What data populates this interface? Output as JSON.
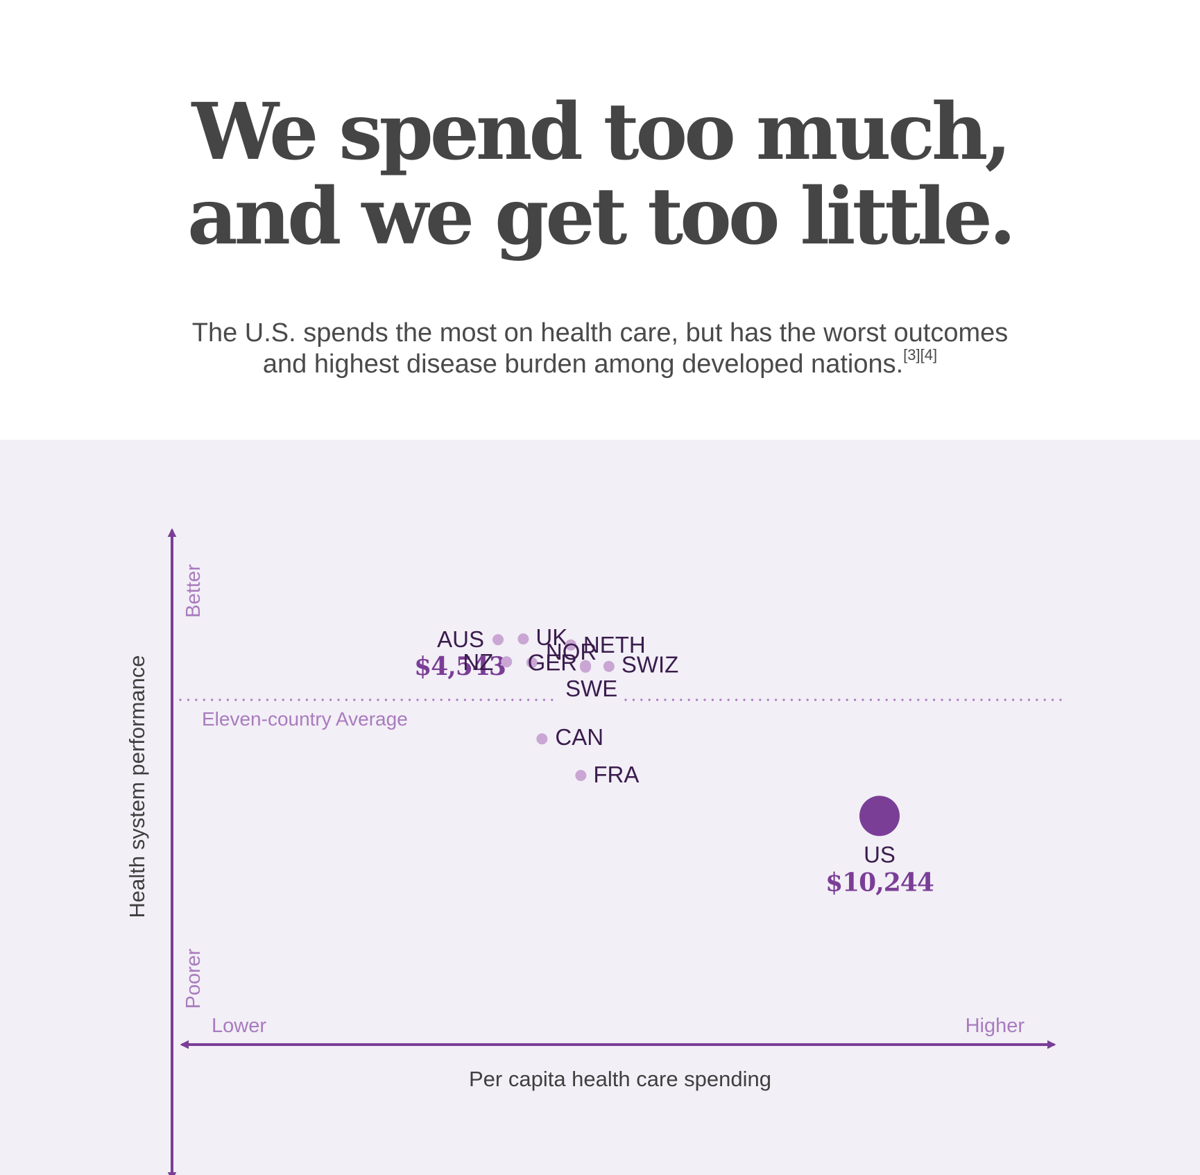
{
  "header": {
    "headline_line1": "We spend too much,",
    "headline_line2": "and we get too little.",
    "subtitle_line1": "The U.S. spends the most on health care, but has the worst outcomes",
    "subtitle_line2": "and highest disease burden among developed nations.",
    "subtitle_refs": "[3][4]"
  },
  "colors": {
    "axis": "#7b3e97",
    "point": "#c9a6d4",
    "us_point": "#7b3e97",
    "panel_background": "#f2eff6",
    "label_text": "#3a1c4d",
    "muted_label": "#a97bbe",
    "headline": "#454545"
  },
  "chart_data": {
    "type": "scatter",
    "xlabel": "Per capita health care spending",
    "ylabel": "Health system performance",
    "x_low_label": "Lower",
    "x_high_label": "Higher",
    "y_high_label": "Better",
    "y_low_label": "Poorer",
    "average_line_label": "Eleven-country Average",
    "average_line": {
      "orientation": "horizontal",
      "style": "dotted"
    },
    "grid": false,
    "points": [
      {
        "label": "AUS",
        "value_label": "$4,543",
        "x": 4543,
        "y": 0.78
      },
      {
        "label": "UK",
        "x": 4920,
        "y": 0.79
      },
      {
        "label": "NETH",
        "x": 5630,
        "y": 0.71
      },
      {
        "label": "NZ",
        "x": 4670,
        "y": 0.49
      },
      {
        "label": "NOR",
        "x": 5050,
        "y": 0.48
      },
      {
        "label": "GER",
        "x": 5850,
        "y": 0.44
      },
      {
        "label": "SWE",
        "x": 5850,
        "y": 0.42
      },
      {
        "label": "SWIZ",
        "x": 6200,
        "y": 0.43
      },
      {
        "label": "CAN",
        "x": 5200,
        "y": -0.52
      },
      {
        "label": "FRA",
        "x": 5780,
        "y": -1.0
      },
      {
        "label": "US",
        "value_label": "$10,244",
        "x": 10244,
        "y": -1.53,
        "highlight": true
      }
    ]
  }
}
